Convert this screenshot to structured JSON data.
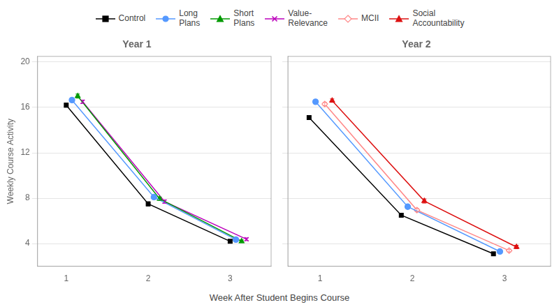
{
  "chart_data": [
    {
      "type": "line",
      "title": "Year 1",
      "xlabel": "Week After Student Begins Course",
      "ylabel": "Weekly Course Activity",
      "xlim": [
        0.65,
        3.5
      ],
      "xticks": [
        1,
        2,
        3
      ],
      "ylim": [
        2,
        20.5
      ],
      "yticks": [
        4,
        8,
        12,
        16,
        20
      ],
      "grid": "y",
      "legend": "top",
      "series": [
        {
          "name": "Control",
          "color": "#000000",
          "marker": "square",
          "x": [
            1.0,
            2.0,
            3.0
          ],
          "values": [
            16.2,
            7.5,
            4.2
          ],
          "yerr": [
            0.18,
            0.18,
            0.12
          ]
        },
        {
          "name": "Long\nPlans",
          "color": "#5599ff",
          "marker": "circle",
          "x": [
            1.07,
            2.07,
            3.07
          ],
          "values": [
            16.65,
            8.1,
            4.35
          ],
          "yerr": [
            0.18,
            0.18,
            0.12
          ]
        },
        {
          "name": "Short\nPlans",
          "color": "#009900",
          "marker": "triangle",
          "x": [
            1.14,
            2.14,
            3.14
          ],
          "values": [
            17.0,
            7.95,
            4.2
          ],
          "yerr": [
            0.18,
            0.15,
            0.12
          ]
        },
        {
          "name": "Value-\nRelevance",
          "color": "#bb00bb",
          "marker": "x",
          "x": [
            1.2,
            2.2,
            3.2
          ],
          "values": [
            16.5,
            7.7,
            4.38
          ],
          "yerr": [
            0.15,
            0.15,
            0.12
          ]
        }
      ]
    },
    {
      "type": "line",
      "title": "Year 2",
      "xlim": [
        0.65,
        3.5
      ],
      "xticks": [
        1,
        2,
        3
      ],
      "ylim": [
        2,
        20.5
      ],
      "yticks": [
        4,
        8,
        12,
        16,
        20
      ],
      "grid": "y",
      "legend": "top",
      "tick_labels": "x",
      "series": [
        {
          "name": "Control",
          "color": "#000000",
          "marker": "square",
          "x": [
            0.88,
            1.88,
            2.88
          ],
          "values": [
            15.1,
            6.5,
            3.1
          ],
          "yerr": [
            0.15,
            0.15,
            0.12
          ]
        },
        {
          "name": "Long\nPlans",
          "color": "#5599ff",
          "marker": "circle",
          "x": [
            0.95,
            1.95,
            2.95
          ],
          "values": [
            16.5,
            7.25,
            3.3
          ],
          "yerr": [
            0.15,
            0.15,
            0.1
          ]
        },
        {
          "name": "MCII",
          "color": "#ff8888",
          "marker": "open-diamond",
          "x": [
            1.05,
            2.05,
            3.05
          ],
          "values": [
            16.3,
            6.95,
            3.38
          ],
          "yerr": [
            0.15,
            0.15,
            0.12
          ]
        },
        {
          "name": "Social\nAccountability",
          "color": "#dd1111",
          "marker": "triangle",
          "x": [
            1.13,
            2.13,
            3.13
          ],
          "values": [
            16.6,
            7.75,
            3.7
          ],
          "yerr": [
            0.15,
            0.18,
            0.15
          ]
        }
      ]
    }
  ]
}
